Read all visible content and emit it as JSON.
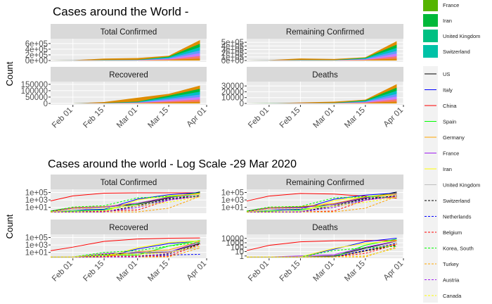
{
  "top_section": {
    "title": "Cases around the World -",
    "ylabel": "Count",
    "x_ticks": [
      "Feb 01",
      "Feb 15",
      "Mar 01",
      "Mar 15",
      "Apr 01"
    ],
    "legend_top": [
      "France",
      "Iran",
      "United Kingdom",
      "Switzerland"
    ],
    "legend_top_colors": [
      "#55b400",
      "#00b93a",
      "#00c082",
      "#00c2a7"
    ]
  },
  "bottom_section": {
    "title": "Cases around the world - Log Scale -29 Mar 2020",
    "ylabel": "Count",
    "x_ticks": [
      "Feb 01",
      "Feb 15",
      "Mar 01",
      "Mar 15",
      "Apr 01"
    ]
  },
  "legend_lines": [
    {
      "name": "US",
      "color": "#000000",
      "dash": "solid"
    },
    {
      "name": "Italy",
      "color": "#0000ff",
      "dash": "solid"
    },
    {
      "name": "China",
      "color": "#ff0000",
      "dash": "solid"
    },
    {
      "name": "Spain",
      "color": "#00ff00",
      "dash": "solid"
    },
    {
      "name": "Germany",
      "color": "#ffa500",
      "dash": "solid"
    },
    {
      "name": "France",
      "color": "#a020f0",
      "dash": "solid"
    },
    {
      "name": "Iran",
      "color": "#ffff00",
      "dash": "solid"
    },
    {
      "name": "United Kingdom",
      "color": "#bebebe",
      "dash": "solid"
    },
    {
      "name": "Switzerland",
      "color": "#000000",
      "dash": "dashed"
    },
    {
      "name": "Netherlands",
      "color": "#0000ff",
      "dash": "dashed"
    },
    {
      "name": "Belgium",
      "color": "#ff0000",
      "dash": "dashed"
    },
    {
      "name": "Korea, South",
      "color": "#00ff00",
      "dash": "dashed"
    },
    {
      "name": "Turkey",
      "color": "#ffa500",
      "dash": "dashed"
    },
    {
      "name": "Austria",
      "color": "#a020f0",
      "dash": "dashed"
    },
    {
      "name": "Canada",
      "color": "#ffff00",
      "dash": "dashed"
    }
  ],
  "chart_data": [
    {
      "type": "area",
      "title": "Total Confirmed",
      "ylabel": "Count",
      "yticks": [
        "0e+00",
        "2e+05",
        "4e+05",
        "6e+05"
      ],
      "ylim": [
        0,
        720000
      ],
      "x": [
        "2020-01-22",
        "2020-02-01",
        "2020-02-15",
        "2020-03-01",
        "2020-03-15",
        "2020-03-29"
      ],
      "series_stack_totals": [
        600,
        12000,
        69000,
        88000,
        168000,
        720000
      ]
    },
    {
      "type": "area",
      "title": "Remaining Confirmed",
      "ylabel": "Count",
      "yticks": [
        "0e+00",
        "1e+05",
        "2e+05",
        "3e+05",
        "4e+05",
        "5e+05"
      ],
      "ylim": [
        0,
        560000
      ],
      "x": [
        "2020-01-22",
        "2020-02-01",
        "2020-02-15",
        "2020-03-01",
        "2020-03-15",
        "2020-03-29"
      ],
      "series_stack_totals": [
        500,
        11000,
        56000,
        42000,
        90000,
        530000
      ]
    },
    {
      "type": "area",
      "title": "Recovered",
      "ylabel": "Count",
      "yticks": [
        "0",
        "50000",
        "100000",
        "150000"
      ],
      "ylim": [
        0,
        160000
      ],
      "x": [
        "2020-01-22",
        "2020-02-01",
        "2020-02-15",
        "2020-03-01",
        "2020-03-15",
        "2020-03-29"
      ],
      "series_stack_totals": [
        30,
        300,
        11000,
        45000,
        75000,
        140000
      ]
    },
    {
      "type": "area",
      "title": "Deaths",
      "ylabel": "Count",
      "yticks": [
        "0",
        "10000",
        "20000",
        "30000"
      ],
      "ylim": [
        0,
        35000
      ],
      "x": [
        "2020-01-22",
        "2020-02-01",
        "2020-02-15",
        "2020-03-01",
        "2020-03-15",
        "2020-03-29"
      ],
      "series_stack_totals": [
        17,
        300,
        1700,
        3000,
        6500,
        33000
      ]
    },
    {
      "type": "line",
      "title": "Total Confirmed",
      "yscale": "log",
      "yticks": [
        "1e+01",
        "1e+03",
        "1e+05"
      ],
      "x": [
        "2020-01-22",
        "2020-02-01",
        "2020-02-15",
        "2020-03-01",
        "2020-03-15",
        "2020-03-29"
      ],
      "series": [
        {
          "name": "China",
          "values": [
            550,
            12000,
            67000,
            80000,
            81000,
            82000
          ]
        },
        {
          "name": "US",
          "values": [
            1,
            8,
            15,
            70,
            3500,
            140000
          ]
        },
        {
          "name": "Italy",
          "values": [
            0,
            2,
            3,
            1700,
            24700,
            97000
          ]
        },
        {
          "name": "Spain",
          "values": [
            0,
            1,
            2,
            84,
            7800,
            80000
          ]
        },
        {
          "name": "Germany",
          "values": [
            0,
            8,
            16,
            130,
            5800,
            62000
          ]
        },
        {
          "name": "France",
          "values": [
            0,
            6,
            12,
            130,
            4500,
            40000
          ]
        },
        {
          "name": "Iran",
          "values": [
            0,
            0,
            0,
            980,
            13900,
            38000
          ]
        },
        {
          "name": "United Kingdom",
          "values": [
            0,
            2,
            9,
            36,
            1140,
            19800
          ]
        },
        {
          "name": "Switzerland",
          "values": [
            0,
            0,
            0,
            27,
            2200,
            14800
          ]
        },
        {
          "name": "Netherlands",
          "values": [
            0,
            0,
            0,
            10,
            1140,
            10900
          ]
        },
        {
          "name": "Belgium",
          "values": [
            0,
            0,
            1,
            2,
            890,
            11900
          ]
        },
        {
          "name": "Korea, South",
          "values": [
            1,
            12,
            28,
            3700,
            8100,
            9600
          ]
        },
        {
          "name": "Turkey",
          "values": [
            0,
            0,
            0,
            0,
            6,
            9200
          ]
        },
        {
          "name": "Austria",
          "values": [
            0,
            0,
            0,
            10,
            860,
            9000
          ]
        },
        {
          "name": "Canada",
          "values": [
            0,
            4,
            7,
            24,
            250,
            6300
          ]
        }
      ]
    },
    {
      "type": "line",
      "title": "Remaining Confirmed",
      "yscale": "log",
      "yticks": [
        "1e+01",
        "1e+03",
        "1e+05"
      ],
      "x": [
        "2020-01-22",
        "2020-02-01",
        "2020-02-15",
        "2020-03-01",
        "2020-03-15",
        "2020-03-29"
      ],
      "series": [
        {
          "name": "China",
          "values": [
            500,
            11000,
            55000,
            37000,
            10000,
            3000
          ]
        },
        {
          "name": "US",
          "values": [
            1,
            8,
            12,
            60,
            3300,
            135000
          ]
        },
        {
          "name": "Italy",
          "values": [
            0,
            2,
            3,
            1500,
            20000,
            73000
          ]
        },
        {
          "name": "Spain",
          "values": [
            0,
            1,
            2,
            82,
            7100,
            56000
          ]
        },
        {
          "name": "Germany",
          "values": [
            0,
            8,
            16,
            114,
            5700,
            52000
          ]
        },
        {
          "name": "France",
          "values": [
            0,
            6,
            8,
            70,
            4300,
            30000
          ]
        },
        {
          "name": "Iran",
          "values": [
            0,
            0,
            0,
            700,
            7400,
            23000
          ]
        },
        {
          "name": "United Kingdom",
          "values": [
            0,
            2,
            1,
            28,
            1100,
            18500
          ]
        },
        {
          "name": "Switzerland",
          "values": [
            0,
            0,
            0,
            26,
            2100,
            12000
          ]
        },
        {
          "name": "Netherlands",
          "values": [
            0,
            0,
            0,
            10,
            1100,
            10000
          ]
        },
        {
          "name": "Belgium",
          "values": [
            0,
            0,
            0,
            1,
            880,
            9900
          ]
        },
        {
          "name": "Korea, South",
          "values": [
            1,
            12,
            18,
            3600,
            7300,
            4200
          ]
        },
        {
          "name": "Turkey",
          "values": [
            0,
            0,
            0,
            0,
            6,
            8900
          ]
        },
        {
          "name": "Austria",
          "values": [
            0,
            0,
            0,
            10,
            850,
            8300
          ]
        },
        {
          "name": "Canada",
          "values": [
            0,
            4,
            4,
            21,
            230,
            5800
          ]
        }
      ]
    },
    {
      "type": "line",
      "title": "Recovered",
      "yscale": "log",
      "yticks": [
        "1e+01",
        "1e+03",
        "1e+05"
      ],
      "x": [
        "2020-01-22",
        "2020-02-01",
        "2020-02-15",
        "2020-03-01",
        "2020-03-15",
        "2020-03-29"
      ],
      "series": [
        {
          "name": "China",
          "values": [
            28,
            260,
            9400,
            40000,
            67000,
            75000
          ]
        },
        {
          "name": "US",
          "values": [
            0,
            0,
            3,
            7,
            12,
            2600
          ]
        },
        {
          "name": "Italy",
          "values": [
            0,
            0,
            0,
            83,
            2300,
            13000
          ]
        },
        {
          "name": "Spain",
          "values": [
            0,
            0,
            2,
            2,
            520,
            17000
          ]
        },
        {
          "name": "Germany",
          "values": [
            0,
            0,
            0,
            16,
            46,
            9200
          ]
        },
        {
          "name": "France",
          "values": [
            0,
            0,
            4,
            12,
            12,
            7200
          ]
        },
        {
          "name": "Iran",
          "values": [
            0,
            0,
            0,
            175,
            4600,
            12000
          ]
        },
        {
          "name": "United Kingdom",
          "values": [
            0,
            0,
            8,
            8,
            20,
            150
          ]
        },
        {
          "name": "Switzerland",
          "values": [
            0,
            0,
            0,
            1,
            4,
            1600
          ]
        },
        {
          "name": "Netherlands",
          "values": [
            0,
            0,
            0,
            0,
            2,
            3
          ]
        },
        {
          "name": "Belgium",
          "values": [
            0,
            0,
            1,
            1,
            1,
            1500
          ]
        },
        {
          "name": "Korea, South",
          "values": [
            0,
            0,
            10,
            30,
            510,
            5000
          ]
        },
        {
          "name": "Turkey",
          "values": [
            0,
            0,
            0,
            0,
            0,
            160
          ]
        },
        {
          "name": "Austria",
          "values": [
            0,
            0,
            0,
            0,
            6,
            480
          ]
        },
        {
          "name": "Canada",
          "values": [
            0,
            0,
            3,
            3,
            9,
            400
          ]
        }
      ]
    },
    {
      "type": "line",
      "title": "Deaths",
      "yscale": "log",
      "yticks": [
        "1",
        "10",
        "100",
        "1000",
        "10000"
      ],
      "x": [
        "2020-01-22",
        "2020-02-01",
        "2020-02-15",
        "2020-03-01",
        "2020-03-15",
        "2020-03-29"
      ],
      "series": [
        {
          "name": "China",
          "values": [
            17,
            260,
            1660,
            2870,
            3200,
            3300
          ]
        },
        {
          "name": "US",
          "values": [
            0,
            0,
            0,
            1,
            60,
            2470
          ]
        },
        {
          "name": "Italy",
          "values": [
            0,
            0,
            0,
            34,
            1800,
            10800
          ]
        },
        {
          "name": "Spain",
          "values": [
            0,
            0,
            0,
            0,
            290,
            6800
          ]
        },
        {
          "name": "Germany",
          "values": [
            0,
            0,
            0,
            0,
            13,
            560
          ]
        },
        {
          "name": "France",
          "values": [
            0,
            0,
            1,
            2,
            90,
            2600
          ]
        },
        {
          "name": "Iran",
          "values": [
            0,
            0,
            0,
            54,
            720,
            2640
          ]
        },
        {
          "name": "United Kingdom",
          "values": [
            0,
            0,
            0,
            0,
            35,
            1230
          ]
        },
        {
          "name": "Switzerland",
          "values": [
            0,
            0,
            0,
            0,
            14,
            260
          ]
        },
        {
          "name": "Netherlands",
          "values": [
            0,
            0,
            0,
            0,
            20,
            770
          ]
        },
        {
          "name": "Belgium",
          "values": [
            0,
            0,
            0,
            0,
            4,
            430
          ]
        },
        {
          "name": "Korea, South",
          "values": [
            0,
            0,
            0,
            17,
            75,
            150
          ]
        },
        {
          "name": "Turkey",
          "values": [
            0,
            0,
            0,
            0,
            0,
            130
          ]
        },
        {
          "name": "Austria",
          "values": [
            0,
            0,
            0,
            0,
            1,
            70
          ]
        },
        {
          "name": "Canada",
          "values": [
            0,
            0,
            0,
            0,
            1,
            60
          ]
        }
      ]
    }
  ]
}
